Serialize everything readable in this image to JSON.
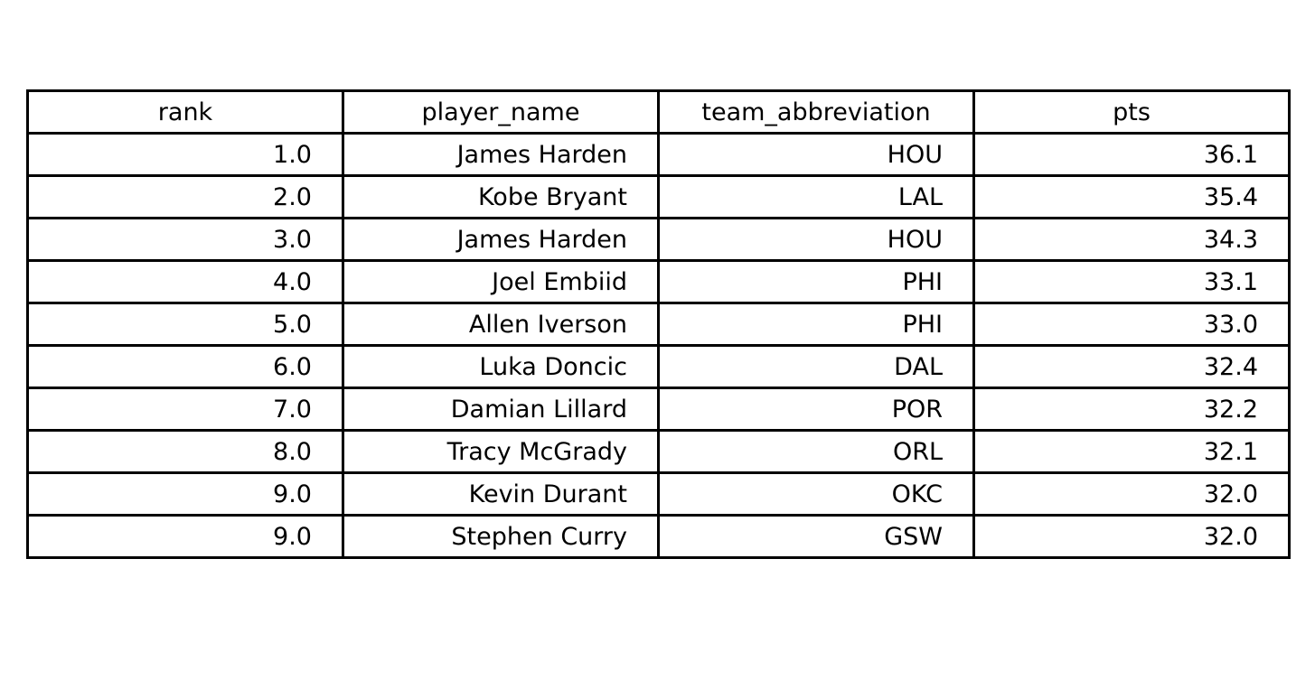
{
  "chart_data": {
    "type": "table",
    "columns": [
      "rank",
      "player_name",
      "team_abbreviation",
      "pts"
    ],
    "rows": [
      [
        "1.0",
        "James Harden",
        "HOU",
        "36.1"
      ],
      [
        "2.0",
        "Kobe Bryant",
        "LAL",
        "35.4"
      ],
      [
        "3.0",
        "James Harden",
        "HOU",
        "34.3"
      ],
      [
        "4.0",
        "Joel Embiid",
        "PHI",
        "33.1"
      ],
      [
        "5.0",
        "Allen Iverson",
        "PHI",
        "33.0"
      ],
      [
        "6.0",
        "Luka Doncic",
        "DAL",
        "32.4"
      ],
      [
        "7.0",
        "Damian Lillard",
        "POR",
        "32.2"
      ],
      [
        "8.0",
        "Tracy McGrady",
        "ORL",
        "32.1"
      ],
      [
        "9.0",
        "Kevin Durant",
        "OKC",
        "32.0"
      ],
      [
        "9.0",
        "Stephen Curry",
        "GSW",
        "32.0"
      ]
    ]
  }
}
